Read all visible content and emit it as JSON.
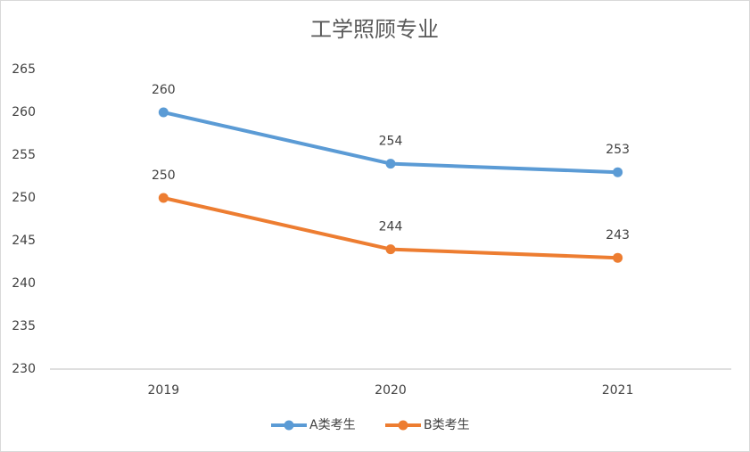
{
  "chart_data": {
    "type": "line",
    "title": "工学照顾专业",
    "categories": [
      "2019",
      "2020",
      "2021"
    ],
    "series": [
      {
        "name": "A类考生",
        "color": "#5b9bd5",
        "values": [
          260,
          254,
          253
        ]
      },
      {
        "name": "B类考生",
        "color": "#ed7d31",
        "values": [
          250,
          244,
          243
        ]
      }
    ],
    "ylim": [
      230,
      265
    ],
    "yticks": [
      230,
      235,
      240,
      245,
      250,
      255,
      260,
      265
    ],
    "grid": false,
    "legend": "bottom"
  }
}
